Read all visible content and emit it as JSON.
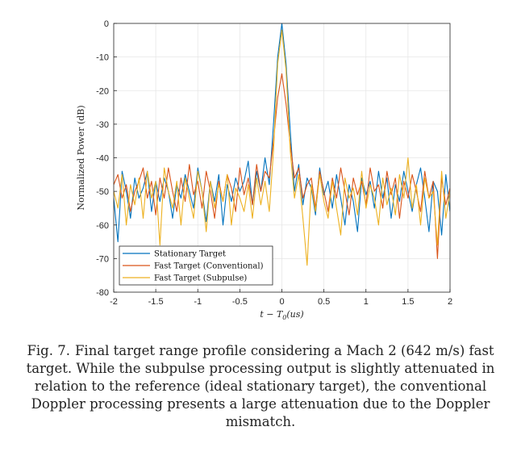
{
  "chart_data": {
    "type": "line",
    "xlabel": "t − T0(us)",
    "ylabel": "Normalized Power (dB)",
    "xlim": [
      -2,
      2
    ],
    "ylim": [
      -80,
      0
    ],
    "xticks": [
      -2,
      -1.5,
      -1,
      -0.5,
      0,
      0.5,
      1,
      1.5,
      2
    ],
    "xtick_labels": [
      "-2",
      "-1.5",
      "-1",
      "-0.5",
      "0",
      "0.5",
      "1",
      "1.5",
      "2"
    ],
    "yticks": [
      0,
      -10,
      -20,
      -30,
      -40,
      -50,
      -60,
      -70,
      -80
    ],
    "ytick_labels": [
      "0",
      "-10",
      "-20",
      "-30",
      "-40",
      "-50",
      "-60",
      "-70",
      "-80"
    ],
    "grid": true,
    "legend_position": "bottom-left",
    "x": [
      -2.0,
      -1.95,
      -1.9,
      -1.85,
      -1.8,
      -1.75,
      -1.7,
      -1.65,
      -1.6,
      -1.55,
      -1.5,
      -1.45,
      -1.4,
      -1.35,
      -1.3,
      -1.25,
      -1.2,
      -1.15,
      -1.1,
      -1.05,
      -1.0,
      -0.95,
      -0.9,
      -0.85,
      -0.8,
      -0.75,
      -0.7,
      -0.65,
      -0.6,
      -0.55,
      -0.5,
      -0.45,
      -0.4,
      -0.35,
      -0.3,
      -0.25,
      -0.2,
      -0.15,
      -0.1,
      -0.05,
      0.0,
      0.05,
      0.1,
      0.15,
      0.2,
      0.25,
      0.3,
      0.35,
      0.4,
      0.45,
      0.5,
      0.55,
      0.6,
      0.65,
      0.7,
      0.75,
      0.8,
      0.85,
      0.9,
      0.95,
      1.0,
      1.05,
      1.1,
      1.15,
      1.2,
      1.25,
      1.3,
      1.35,
      1.4,
      1.45,
      1.5,
      1.55,
      1.6,
      1.65,
      1.7,
      1.75,
      1.8,
      1.85,
      1.9,
      1.95,
      2.0
    ],
    "series": [
      {
        "name": "Stationary Target",
        "color": "#0072BD",
        "values": [
          -52,
          -65,
          -44,
          -50,
          -58,
          -46,
          -52,
          -49,
          -44,
          -56,
          -47,
          -53,
          -46,
          -50,
          -58,
          -48,
          -52,
          -45,
          -50,
          -55,
          -43,
          -50,
          -59,
          -47,
          -53,
          -45,
          -60,
          -48,
          -53,
          -46,
          -50,
          -47,
          -41,
          -54,
          -44,
          -50,
          -40,
          -48,
          -30,
          -10,
          0,
          -12,
          -32,
          -50,
          -42,
          -54,
          -46,
          -49,
          -57,
          -43,
          -51,
          -47,
          -55,
          -45,
          -52,
          -60,
          -48,
          -53,
          -62,
          -46,
          -51,
          -47,
          -55,
          -44,
          -52,
          -46,
          -58,
          -48,
          -53,
          -44,
          -50,
          -56,
          -48,
          -43,
          -52,
          -62,
          -47,
          -50,
          -63,
          -45,
          -56
        ]
      },
      {
        "name": "Fast Target (Conventional)",
        "color": "#D95319",
        "values": [
          -48,
          -45,
          -52,
          -48,
          -56,
          -50,
          -47,
          -43,
          -52,
          -47,
          -57,
          -46,
          -52,
          -43,
          -50,
          -56,
          -46,
          -53,
          -42,
          -51,
          -47,
          -55,
          -44,
          -50,
          -58,
          -47,
          -53,
          -45,
          -49,
          -56,
          -43,
          -51,
          -46,
          -54,
          -42,
          -50,
          -44,
          -46,
          -35,
          -22,
          -15,
          -24,
          -36,
          -46,
          -43,
          -52,
          -48,
          -46,
          -55,
          -44,
          -50,
          -56,
          -46,
          -52,
          -43,
          -50,
          -57,
          -46,
          -51,
          -47,
          -54,
          -43,
          -50,
          -48,
          -55,
          -44,
          -51,
          -46,
          -58,
          -47,
          -52,
          -45,
          -50,
          -56,
          -44,
          -52,
          -47,
          -70,
          -46,
          -54,
          -49
        ]
      },
      {
        "name": "Fast Target (Subpulse)",
        "color": "#EDB120",
        "values": [
          -50,
          -55,
          -45,
          -60,
          -48,
          -54,
          -46,
          -58,
          -44,
          -52,
          -47,
          -66,
          -43,
          -50,
          -55,
          -47,
          -60,
          -46,
          -52,
          -58,
          -44,
          -50,
          -62,
          -47,
          -55,
          -48,
          -53,
          -45,
          -60,
          -49,
          -52,
          -56,
          -48,
          -58,
          -46,
          -54,
          -47,
          -56,
          -38,
          -12,
          -2,
          -14,
          -38,
          -52,
          -45,
          -58,
          -72,
          -48,
          -56,
          -45,
          -53,
          -58,
          -47,
          -55,
          -63,
          -46,
          -52,
          -49,
          -57,
          -44,
          -55,
          -48,
          -52,
          -60,
          -46,
          -54,
          -49,
          -57,
          -45,
          -52,
          -40,
          -55,
          -48,
          -60,
          -46,
          -52,
          -50,
          -66,
          -44,
          -58,
          -50
        ]
      }
    ]
  },
  "caption": {
    "number": "Fig. 7.",
    "text": "Final target range profile considering a Mach 2 (642 m/s) fast target. While the subpulse processing output is slightly attenuated in relation to the reference (ideal stationary target), the conventional Doppler processing presents a large attenuation due to the Doppler mismatch."
  }
}
